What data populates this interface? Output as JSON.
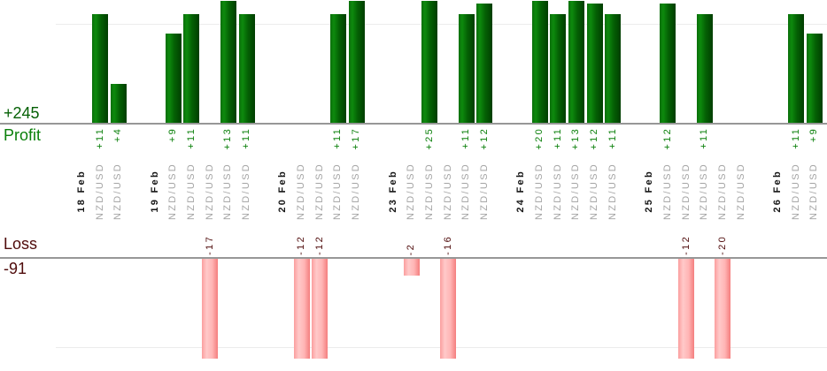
{
  "chart_data": {
    "type": "bar",
    "title": "",
    "profit_axis": {
      "label": "Profit",
      "total": "+245"
    },
    "loss_axis": {
      "label": "Loss",
      "total": "-91"
    },
    "days": [
      {
        "date": "18 Feb",
        "trades": [
          {
            "symbol": "NZD/USD",
            "value": 11,
            "label": "+11"
          },
          {
            "symbol": "NZD/USD",
            "value": 4,
            "label": "+4"
          }
        ]
      },
      {
        "date": "19 Feb",
        "trades": [
          {
            "symbol": "NZD/USD",
            "value": 9,
            "label": "+9"
          },
          {
            "symbol": "NZD/USD",
            "value": 11,
            "label": "+11"
          },
          {
            "symbol": "NZD/USD",
            "value": -17,
            "label": "-17"
          },
          {
            "symbol": "NZD/USD",
            "value": 13,
            "label": "+13"
          },
          {
            "symbol": "NZD/USD",
            "value": 11,
            "label": "+11"
          }
        ]
      },
      {
        "date": "20 Feb",
        "trades": [
          {
            "symbol": "NZD/USD",
            "value": -12,
            "label": "-12"
          },
          {
            "symbol": "NZD/USD",
            "value": -12,
            "label": "-12"
          },
          {
            "symbol": "NZD/USD",
            "value": 11,
            "label": "+11"
          },
          {
            "symbol": "NZD/USD",
            "value": 17,
            "label": "+17"
          }
        ]
      },
      {
        "date": "23 Feb",
        "trades": [
          {
            "symbol": "NZD/USD",
            "value": -2,
            "label": "-2"
          },
          {
            "symbol": "NZD/USD",
            "value": 25,
            "label": "+25"
          },
          {
            "symbol": "NZD/USD",
            "value": -16,
            "label": "-16"
          },
          {
            "symbol": "NZD/USD",
            "value": 11,
            "label": "+11"
          },
          {
            "symbol": "NZD/USD",
            "value": 12,
            "label": "+12"
          }
        ]
      },
      {
        "date": "24 Feb",
        "trades": [
          {
            "symbol": "NZD/USD",
            "value": 20,
            "label": "+20"
          },
          {
            "symbol": "NZD/USD",
            "value": 11,
            "label": "+11"
          },
          {
            "symbol": "NZD/USD",
            "value": 13,
            "label": "+13"
          },
          {
            "symbol": "NZD/USD",
            "value": 12,
            "label": "+12"
          },
          {
            "symbol": "NZD/USD",
            "value": 11,
            "label": "+11"
          }
        ]
      },
      {
        "date": "25 Feb",
        "trades": [
          {
            "symbol": "NZD/USD",
            "value": 12,
            "label": "+12"
          },
          {
            "symbol": "NZD/USD",
            "value": -12,
            "label": "-12"
          },
          {
            "symbol": "NZD/USD",
            "value": 11,
            "label": "+11"
          },
          {
            "symbol": "NZD/USD",
            "value": -20,
            "label": "-20"
          },
          {
            "symbol": "NZD/USD",
            "value": 0,
            "label": ""
          }
        ]
      },
      {
        "date": "26 Feb",
        "trades": [
          {
            "symbol": "NZD/USD",
            "value": 11,
            "label": "+11"
          },
          {
            "symbol": "NZD/USD",
            "value": 9,
            "label": "+9"
          }
        ]
      }
    ],
    "layout_hints": {
      "bar_orientation": "vertical",
      "labels_rotated": true,
      "grid": true,
      "profit_visible_ylim": [
        0,
        12.3
      ],
      "loss_visible_ylim": [
        0,
        -12
      ]
    }
  },
  "colors": {
    "profit_bar": "#0d8a0d",
    "profit_bar_dark": "#013e01",
    "profit_text": "#0b800b",
    "profit_total_text": "#046004",
    "loss_bar": "#ffb5b5",
    "loss_bar_edge": "#f47e7e",
    "loss_text": "#4f0b0b",
    "symbol_text": "#a4a4a4",
    "date_text": "#151515",
    "axis_line": "#979797",
    "gridline": "#ececec"
  }
}
